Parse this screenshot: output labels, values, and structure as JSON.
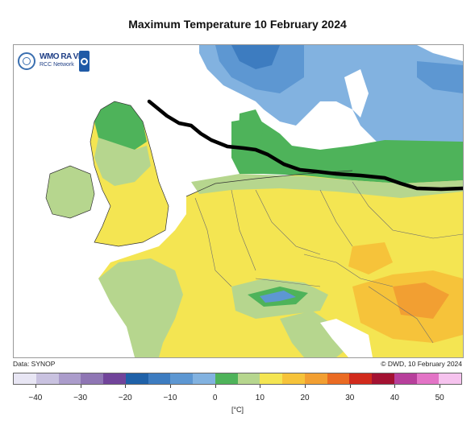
{
  "title": "Maximum Temperature 10 February 2024",
  "logo": {
    "line1": "WMO RA VI",
    "line2": "RCC Network",
    "emblem_icon": "wmo-emblem-icon",
    "badge_icon": "dwd-badge-icon"
  },
  "footer": {
    "source": "Data: SYNOP",
    "credit": "© DWD, 10 February 2024"
  },
  "legend": {
    "unit": "[°C]",
    "colors": [
      "#e8e6f4",
      "#c9c2e0",
      "#ab9ccb",
      "#8f76b4",
      "#71449a",
      "#1f61a8",
      "#3d7cc0",
      "#5d97d2",
      "#82b2e0",
      "#4eb35a",
      "#b6d68e",
      "#f4e552",
      "#f6c33a",
      "#f29f32",
      "#ea6b23",
      "#d12a1c",
      "#a31232",
      "#b73f9b",
      "#e374c6",
      "#f6c3ee"
    ],
    "tick_values": [
      "−40",
      "−30",
      "−20",
      "−10",
      "0",
      "10",
      "20",
      "30",
      "40",
      "50"
    ]
  },
  "map": {
    "palette": {
      "sea": "#ffffff",
      "blue_dark": "#3d7cc0",
      "blue_mid": "#5d97d2",
      "blue_light": "#82b2e0",
      "green": "#4eb35a",
      "pale_green": "#b6d68e",
      "yellow": "#f4e552",
      "orange": "#f6c33a",
      "dark_orange": "#f29f32"
    },
    "drawn_line_color": "#000000"
  }
}
